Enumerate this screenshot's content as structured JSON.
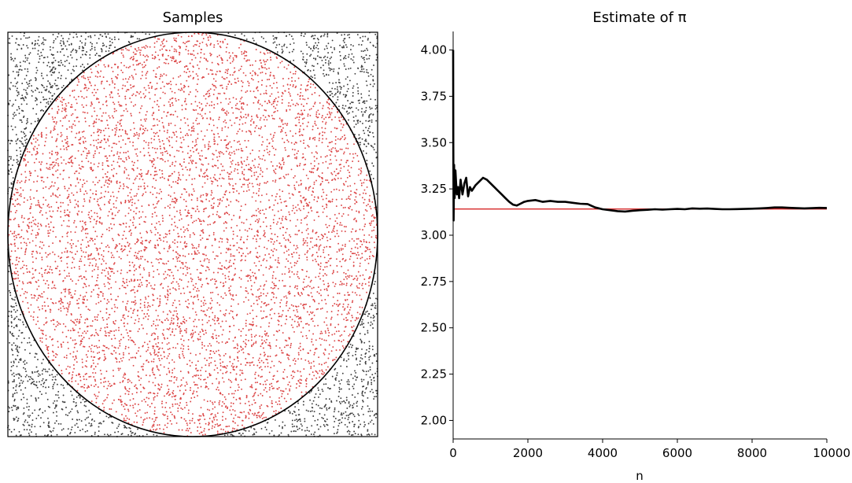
{
  "chart_data": [
    {
      "type": "scatter",
      "title": "Samples",
      "xlabel": "",
      "ylabel": "",
      "xlim": [
        0,
        1
      ],
      "ylim": [
        0,
        1
      ],
      "axes_visible": false,
      "n_points": 10000,
      "series": [
        {
          "name": "",
          "region": "inside circle",
          "color": "#d62728"
        },
        {
          "name": "",
          "region": "outside circle",
          "color": "#000000"
        }
      ],
      "circle": {
        "center": [
          0.5,
          0.5
        ],
        "radius": 0.5,
        "color": "#000000"
      }
    },
    {
      "type": "line",
      "title": "Estimate of π",
      "xlabel": "n",
      "ylabel": "",
      "xlim": [
        0,
        10000
      ],
      "ylim": [
        1.9,
        4.1
      ],
      "x_ticks": [
        0,
        2000,
        4000,
        6000,
        8000,
        10000
      ],
      "x_tick_labels": [
        "0",
        "2000",
        "4000",
        "6000",
        "8000",
        "10000"
      ],
      "y_ticks": [
        2.0,
        2.25,
        2.5,
        2.75,
        3.0,
        3.25,
        3.5,
        3.75,
        4.0
      ],
      "y_tick_labels": [
        "2.00",
        "2.25",
        "2.50",
        "2.75",
        "3.00",
        "3.25",
        "3.50",
        "3.75",
        "4.00"
      ],
      "grid": false,
      "series": [
        {
          "name": "",
          "color": "#000000",
          "x": [
            1,
            5,
            12,
            25,
            40,
            60,
            80,
            100,
            130,
            160,
            200,
            250,
            300,
            350,
            400,
            450,
            500,
            600,
            700,
            800,
            900,
            1000,
            1100,
            1200,
            1300,
            1400,
            1500,
            1600,
            1700,
            1800,
            1900,
            2000,
            2200,
            2400,
            2600,
            2800,
            3000,
            3200,
            3400,
            3600,
            3800,
            4000,
            4200,
            4400,
            4600,
            4800,
            5000,
            5200,
            5400,
            5600,
            5800,
            6000,
            6200,
            6400,
            6600,
            6800,
            7000,
            7200,
            7400,
            7600,
            7800,
            8000,
            8200,
            8400,
            8600,
            8800,
            9000,
            9200,
            9400,
            9600,
            9800,
            10000
          ],
          "y": [
            4.0,
            3.5,
            3.08,
            3.38,
            3.2,
            3.35,
            3.28,
            3.22,
            3.26,
            3.2,
            3.3,
            3.22,
            3.28,
            3.31,
            3.21,
            3.26,
            3.24,
            3.27,
            3.29,
            3.31,
            3.3,
            3.28,
            3.26,
            3.24,
            3.22,
            3.2,
            3.18,
            3.165,
            3.16,
            3.17,
            3.18,
            3.185,
            3.19,
            3.18,
            3.185,
            3.18,
            3.18,
            3.175,
            3.17,
            3.168,
            3.15,
            3.14,
            3.135,
            3.13,
            3.128,
            3.132,
            3.135,
            3.137,
            3.14,
            3.138,
            3.14,
            3.142,
            3.14,
            3.145,
            3.143,
            3.144,
            3.142,
            3.14,
            3.14,
            3.141,
            3.142,
            3.143,
            3.145,
            3.147,
            3.15,
            3.15,
            3.148,
            3.146,
            3.145,
            3.146,
            3.148,
            3.147
          ]
        }
      ],
      "reference_line": {
        "y": 3.14159,
        "color": "#d62728"
      }
    }
  ]
}
